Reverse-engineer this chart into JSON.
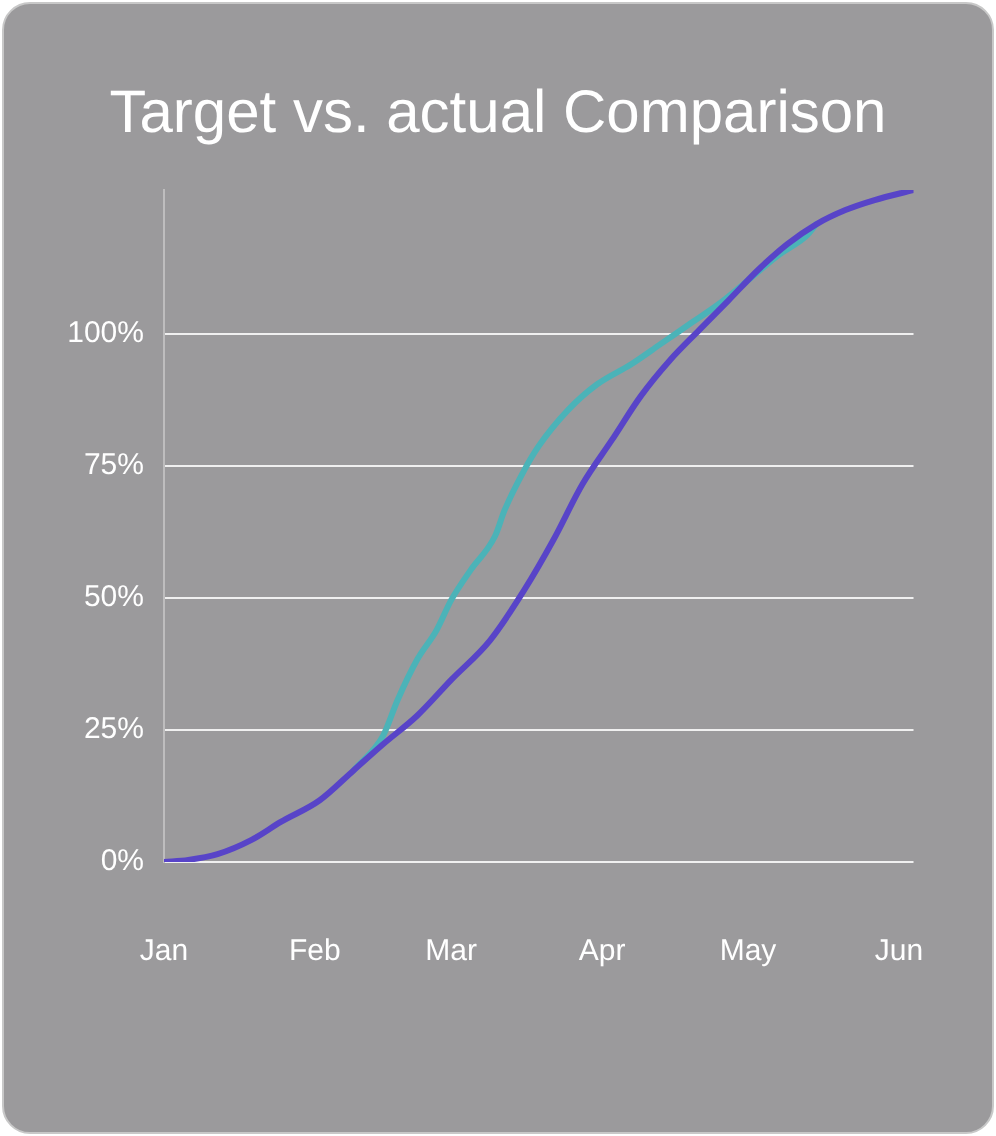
{
  "chart_data": {
    "type": "line",
    "title": "Target vs. actual Comparison",
    "x": [
      "--01-01",
      "--01-06",
      "--01-12",
      "--01-19",
      "--01-25",
      "--02-02",
      "--02-09",
      "--02-15",
      "--02-22",
      "--03-01",
      "--03-09",
      "--03-16",
      "--03-22",
      "--03-28",
      "--04-03",
      "--04-09",
      "--04-15",
      "--04-21",
      "--04-27",
      "--05-03",
      "--05-09",
      "--05-15",
      "--05-21",
      "--05-27",
      "--06-04"
    ],
    "series": [
      {
        "color": "#4bb3b8",
        "x": [
          "--02-09",
          "--02-15",
          "--02-18",
          "--02-22",
          "--02-26",
          "--03-01",
          "--03-05",
          "--03-10",
          "--03-12",
          "--03-16",
          "--03-19",
          "--03-25",
          "--03-31",
          "--04-07",
          "--04-13",
          "--04-19",
          "--04-25",
          "--05-01",
          "--05-07",
          "--05-13",
          "--05-15"
        ],
        "values": [
          17.4,
          23.9,
          30.7,
          38.3,
          43.9,
          49.6,
          55.3,
          61.7,
          66.7,
          74.2,
          78.8,
          85.6,
          90.5,
          94.3,
          98.1,
          101.9,
          105.7,
          110.2,
          114.8,
          118.6,
          120.8
        ]
      },
      {
        "color": "#5844c8",
        "values": [
          0,
          0.4,
          1.5,
          4.2,
          7.6,
          11.7,
          17.4,
          22.3,
          27.7,
          34.5,
          42,
          51.5,
          61,
          71.6,
          79.9,
          88.3,
          95.1,
          100.8,
          106.4,
          112.1,
          117,
          120.8,
          123.5,
          125.4,
          127.3
        ]
      }
    ],
    "xlim": [
      "--01-01",
      "--06-04"
    ],
    "xticks": [
      {
        "value": "--01-01",
        "label": "Jan"
      },
      {
        "value": "--02-01",
        "label": "Feb"
      },
      {
        "value": "--03-01",
        "label": "Mar"
      },
      {
        "value": "--04-01",
        "label": "Apr"
      },
      {
        "value": "--05-01",
        "label": "May"
      },
      {
        "value": "--06-01",
        "label": "Jun"
      }
    ],
    "ylim": [
      0,
      127.3
    ],
    "yticks": [
      {
        "value": 0,
        "label": "0%"
      },
      {
        "value": 25,
        "label": "25%"
      },
      {
        "value": 50,
        "label": "50%"
      },
      {
        "value": 75,
        "label": "75%"
      },
      {
        "value": 100,
        "label": "100%"
      }
    ],
    "grid": "y",
    "legend": false,
    "marker": "none",
    "line_style": "solid"
  }
}
